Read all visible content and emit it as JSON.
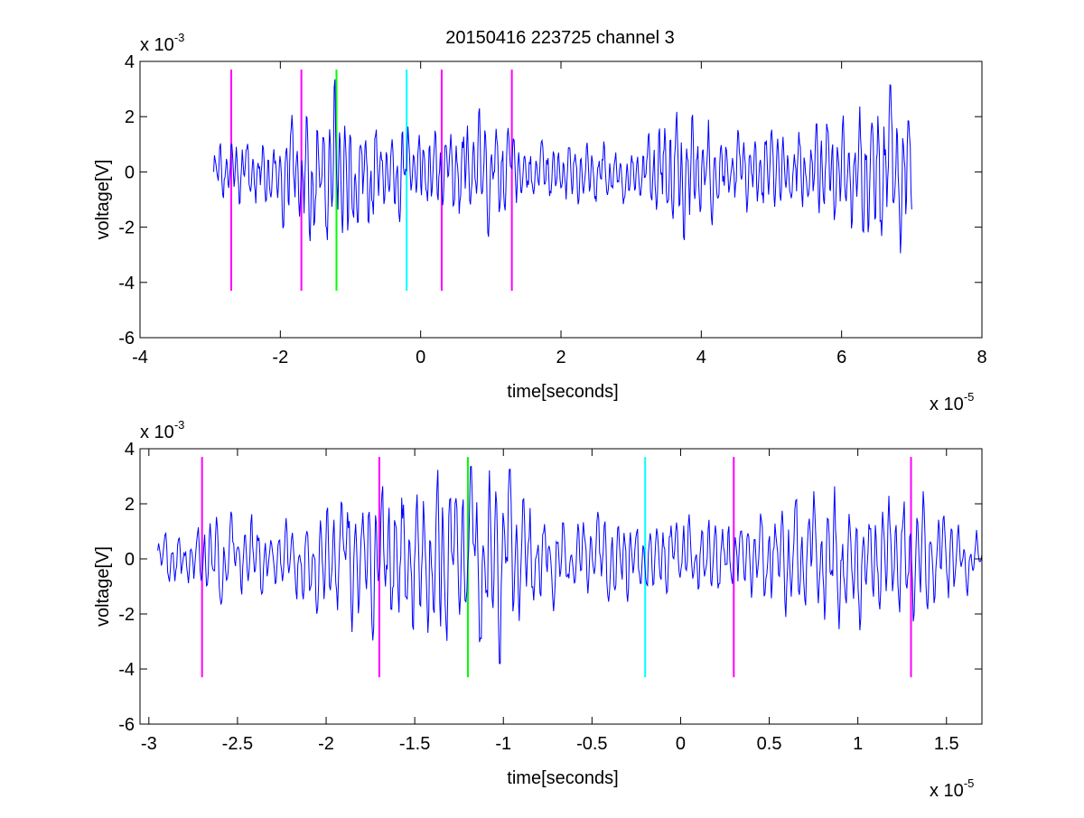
{
  "figure": {
    "title": "20150416 223725 channel 3"
  },
  "colors": {
    "signal": "#0000ff",
    "marker_magenta": "#ff00ff",
    "marker_green": "#00ff00",
    "marker_cyan": "#00ffff",
    "axes": "#000000",
    "background": "#ffffff"
  },
  "chart_data": [
    {
      "type": "line",
      "title": "20150416 223725 channel 3",
      "xlabel": "time[seconds]",
      "ylabel": "voltage[V]",
      "x_exponent_base": "x 10",
      "x_exponent": "-5",
      "y_exponent_base": "x 10",
      "y_exponent": "-3",
      "x_scale": 1e-05,
      "y_scale": 0.001,
      "xlim": [
        -4,
        8
      ],
      "ylim": [
        -6,
        4
      ],
      "xticks": [
        -4,
        -2,
        0,
        2,
        4,
        6,
        8
      ],
      "xtick_labels": [
        "-4",
        "-2",
        "0",
        "2",
        "4",
        "6",
        "8"
      ],
      "yticks": [
        -6,
        -4,
        -2,
        0,
        2,
        4
      ],
      "ytick_labels": [
        "-6",
        "-4",
        "-2",
        "0",
        "2",
        "4"
      ],
      "grid": false,
      "signal": {
        "color": "#0000ff",
        "x_start": -2.95,
        "x_end": 7.0,
        "envelope": [
          [
            -2.95,
            0.9
          ],
          [
            -2.0,
            1.5
          ],
          [
            -1.6,
            2.8
          ],
          [
            -1.2,
            3.3
          ],
          [
            -0.8,
            2.0
          ],
          [
            0.0,
            1.4
          ],
          [
            1.0,
            2.0
          ],
          [
            1.5,
            1.0
          ],
          [
            3.0,
            1.0
          ],
          [
            3.7,
            2.4
          ],
          [
            4.5,
            1.2
          ],
          [
            5.5,
            1.5
          ],
          [
            6.0,
            1.8
          ],
          [
            6.5,
            2.4
          ],
          [
            6.7,
            3.2
          ],
          [
            7.0,
            2.4
          ]
        ]
      },
      "markers": [
        {
          "x": -2.7,
          "color": "#ff00ff",
          "y_bottom": -4.3,
          "y_top": 3.7
        },
        {
          "x": -1.7,
          "color": "#ff00ff",
          "y_bottom": -4.3,
          "y_top": 3.7
        },
        {
          "x": -1.2,
          "color": "#00ff00",
          "y_bottom": -4.3,
          "y_top": 3.7
        },
        {
          "x": -0.2,
          "color": "#00ffff",
          "y_bottom": -4.3,
          "y_top": 3.7
        },
        {
          "x": 0.3,
          "color": "#ff00ff",
          "y_bottom": -4.3,
          "y_top": 3.7
        },
        {
          "x": 1.3,
          "color": "#ff00ff",
          "y_bottom": -4.3,
          "y_top": 3.7
        }
      ]
    },
    {
      "type": "line",
      "title": "",
      "xlabel": "time[seconds]",
      "ylabel": "voltage[V]",
      "x_exponent_base": "x 10",
      "x_exponent": "-5",
      "y_exponent_base": "x 10",
      "y_exponent": "-3",
      "x_scale": 1e-05,
      "y_scale": 0.001,
      "xlim": [
        -3.05,
        1.7
      ],
      "ylim": [
        -6,
        4
      ],
      "xticks": [
        -3,
        -2.5,
        -2,
        -1.5,
        -1,
        -0.5,
        0,
        0.5,
        1,
        1.5
      ],
      "xtick_labels": [
        "-3",
        "-2.5",
        "-2",
        "-1.5",
        "-1",
        "-0.5",
        "0",
        "0.5",
        "1",
        "1.5"
      ],
      "yticks": [
        -6,
        -4,
        -2,
        0,
        2,
        4
      ],
      "ytick_labels": [
        "-6",
        "-4",
        "-2",
        "0",
        "2",
        "4"
      ],
      "grid": false,
      "signal": {
        "color": "#0000ff",
        "x_start": -2.95,
        "x_end": 1.7,
        "envelope": [
          [
            -2.95,
            0.8
          ],
          [
            -2.6,
            1.5
          ],
          [
            -2.2,
            1.2
          ],
          [
            -2.0,
            2.0
          ],
          [
            -1.7,
            2.4
          ],
          [
            -1.5,
            2.8
          ],
          [
            -1.3,
            3.0
          ],
          [
            -1.2,
            3.2
          ],
          [
            -1.0,
            3.3
          ],
          [
            -0.8,
            1.4
          ],
          [
            -0.5,
            1.5
          ],
          [
            -0.2,
            1.4
          ],
          [
            0.3,
            1.4
          ],
          [
            0.7,
            2.0
          ],
          [
            0.95,
            2.6
          ],
          [
            1.1,
            2.2
          ],
          [
            1.3,
            2.2
          ],
          [
            1.5,
            1.6
          ],
          [
            1.7,
            0.8
          ]
        ]
      },
      "markers": [
        {
          "x": -2.7,
          "color": "#ff00ff",
          "y_bottom": -4.3,
          "y_top": 3.7
        },
        {
          "x": -1.7,
          "color": "#ff00ff",
          "y_bottom": -4.3,
          "y_top": 3.7
        },
        {
          "x": -1.2,
          "color": "#00ff00",
          "y_bottom": -4.3,
          "y_top": 3.7
        },
        {
          "x": -0.2,
          "color": "#00ffff",
          "y_bottom": -4.3,
          "y_top": 3.7
        },
        {
          "x": 0.3,
          "color": "#ff00ff",
          "y_bottom": -4.3,
          "y_top": 3.7
        },
        {
          "x": 1.3,
          "color": "#ff00ff",
          "y_bottom": -4.3,
          "y_top": 3.7
        }
      ]
    }
  ]
}
